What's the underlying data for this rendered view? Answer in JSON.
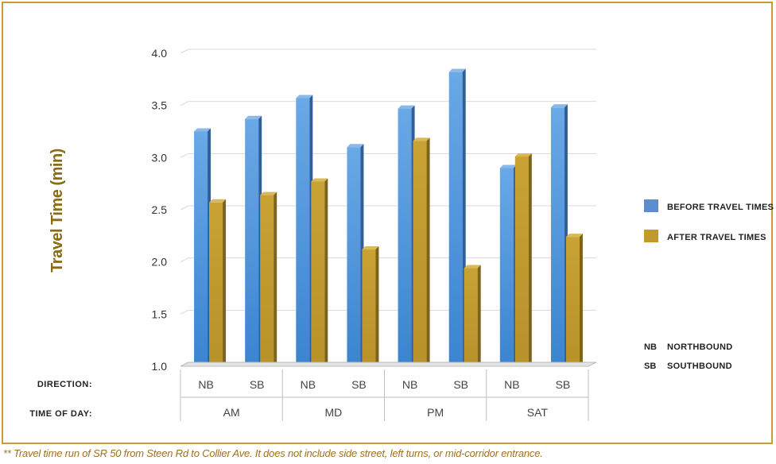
{
  "chart_data": {
    "type": "bar",
    "ylabel": "Travel Time (min)",
    "ylim": [
      1.0,
      4.0
    ],
    "yticks": [
      "1.0",
      "1.5",
      "2.0",
      "2.5",
      "3.0",
      "3.5",
      "4.0"
    ],
    "grid": true,
    "categories": [
      "NB",
      "SB",
      "NB",
      "SB",
      "NB",
      "SB",
      "NB",
      "SB"
    ],
    "groups": [
      "AM",
      "MD",
      "PM",
      "SAT"
    ],
    "direction_label": "DIRECTION:",
    "time_label": "TIME OF DAY:",
    "series": [
      {
        "name": "BEFORE TRAVEL TIMES",
        "color": "#4a8fd6",
        "values": [
          3.25,
          3.37,
          3.57,
          3.1,
          3.47,
          3.82,
          2.9,
          3.48
        ]
      },
      {
        "name": "AFTER TRAVEL TIMES",
        "color": "#c19a2e",
        "values": [
          2.57,
          2.64,
          2.77,
          2.12,
          3.16,
          1.94,
          3.01,
          2.24
        ]
      }
    ],
    "legend_placement": "right",
    "abbreviations": [
      {
        "code": "NB",
        "meaning": "NORTHBOUND"
      },
      {
        "code": "SB",
        "meaning": "SOUTHBOUND"
      }
    ]
  },
  "footnote": "** Travel time run of SR 50 from Steen Rd to Collier Ave. It does not include side street, left turns, or mid-corridor entrance."
}
